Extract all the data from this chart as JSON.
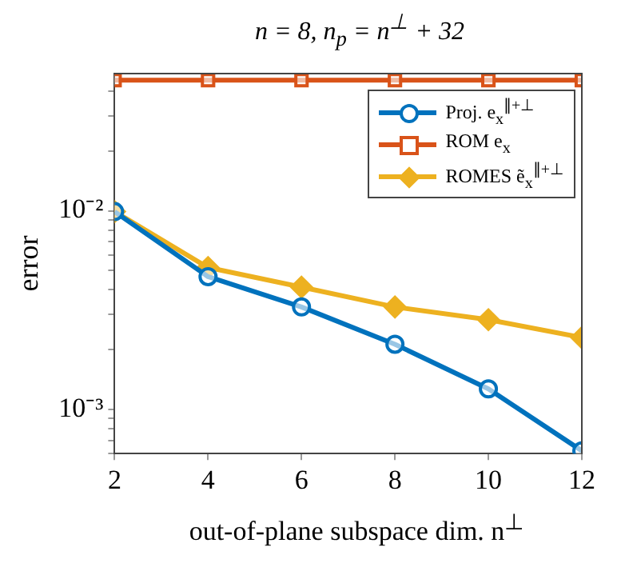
{
  "chart_data": {
    "type": "line",
    "title": "n = 8, n$_{p}$ = n$^{⊥}$ + 32",
    "xlabel": "out-of-plane subspace dim. n$^{⊥}$",
    "ylabel": "error",
    "x": [
      2,
      4,
      6,
      8,
      10,
      12
    ],
    "series": [
      {
        "name": "Proj. e$_{x}$$^{∥+⊥}$",
        "color": "#0072bd",
        "marker": "circle",
        "values": [
          0.0099,
          0.00466,
          0.00328,
          0.00213,
          0.00127,
          0.00062
        ]
      },
      {
        "name": "ROM e$_{x}$",
        "color": "#d95319",
        "marker": "square",
        "values": [
          0.0454,
          0.0454,
          0.0454,
          0.0454,
          0.0454,
          0.0454
        ]
      },
      {
        "name": "ROMES ẽ$_{x}$$^{∥+⊥}$",
        "color": "#edb120",
        "marker": "diamond",
        "values": [
          0.0099,
          0.00518,
          0.00413,
          0.00328,
          0.00283,
          0.0023
        ]
      }
    ],
    "xlim": [
      2,
      12
    ],
    "xticks": [
      2,
      4,
      6,
      8,
      10,
      12
    ],
    "ylim": [
      0.0006,
      0.049
    ],
    "log": "y",
    "yticks": [
      {
        "value": 0.0006,
        "label": null
      },
      {
        "value": 0.0007,
        "label": null
      },
      {
        "value": 0.0008,
        "label": null
      },
      {
        "value": 0.0009,
        "label": null
      },
      {
        "value": 0.001,
        "label": "10⁻³"
      },
      {
        "value": 0.002,
        "label": null
      },
      {
        "value": 0.003,
        "label": null
      },
      {
        "value": 0.004,
        "label": null
      },
      {
        "value": 0.005,
        "label": null
      },
      {
        "value": 0.006,
        "label": null
      },
      {
        "value": 0.007,
        "label": null
      },
      {
        "value": 0.008,
        "label": null
      },
      {
        "value": 0.009,
        "label": null
      },
      {
        "value": 0.01,
        "label": "10⁻²"
      },
      {
        "value": 0.02,
        "label": null
      },
      {
        "value": 0.03,
        "label": null
      },
      {
        "value": 0.04,
        "label": null
      }
    ],
    "grid": false,
    "legend": "top right"
  }
}
